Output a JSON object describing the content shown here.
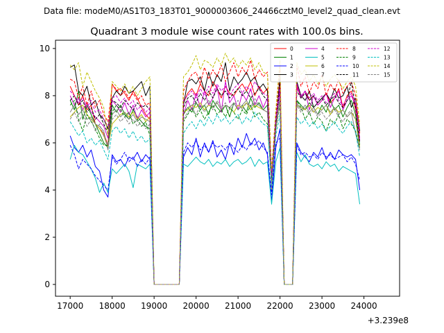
{
  "chart_data": {
    "type": "line",
    "suptitle": "Data file: modeM0/AS1T03_183T01_9000003606_24466cztM0_level2_quad_clean.evt",
    "title": "Quadrant 3 module wise count rates with 100.0s bins.",
    "xlabel": "",
    "ylabel": "",
    "x_offset_label": "+3.239e8",
    "xlim": [
      16650,
      24850
    ],
    "ylim": [
      -0.5,
      10.35
    ],
    "xticks": [
      17000,
      18000,
      19000,
      20000,
      21000,
      22000,
      23000,
      24000
    ],
    "yticks": [
      0,
      2,
      4,
      6,
      8,
      10
    ],
    "x_start": 17000,
    "x_step": 100,
    "grid": false,
    "legend_position": "top-right",
    "series": [
      {
        "name": "0",
        "color": "#ff0000",
        "dash": false,
        "values": [
          8.4,
          8.0,
          7.6,
          8.0,
          7.4,
          7.6,
          6.8,
          6.6,
          6.4,
          5.9,
          8.5,
          8.2,
          8.3,
          8.1,
          7.8,
          8.2,
          7.9,
          7.5,
          7.2,
          7.0,
          0.0,
          0.0,
          0.0,
          0.0,
          0.0,
          0.0,
          0.0,
          7.7,
          8.1,
          8.3,
          8.0,
          8.5,
          8.2,
          8.0,
          8.6,
          8.3,
          7.9,
          8.4,
          8.1,
          8.0,
          8.3,
          8.5,
          8.2,
          8.6,
          8.0,
          8.4,
          8.1,
          8.3,
          4.3,
          7.0,
          8.5,
          0.0,
          0.0,
          0.0,
          8.4,
          7.9,
          8.2,
          7.8,
          8.0,
          7.6,
          7.8,
          8.1,
          7.7,
          7.9,
          8.3,
          7.5,
          8.0,
          8.2,
          7.4,
          6.2
        ]
      },
      {
        "name": "1",
        "color": "#008000",
        "dash": false,
        "values": [
          7.8,
          7.4,
          8.2,
          7.0,
          7.6,
          7.2,
          6.8,
          6.4,
          6.0,
          5.8,
          7.6,
          7.3,
          7.6,
          7.2,
          7.0,
          7.4,
          7.1,
          6.9,
          6.7,
          6.6,
          0.0,
          0.0,
          0.0,
          0.0,
          0.0,
          0.0,
          0.0,
          7.2,
          7.5,
          7.3,
          7.7,
          7.4,
          7.6,
          7.2,
          7.8,
          7.5,
          7.3,
          7.6,
          7.1,
          7.7,
          7.4,
          7.6,
          7.3,
          7.9,
          7.5,
          7.7,
          7.4,
          7.6,
          4.1,
          6.6,
          7.9,
          0.0,
          0.0,
          0.0,
          7.8,
          7.6,
          7.4,
          7.7,
          7.5,
          7.2,
          7.6,
          7.3,
          7.8,
          7.4,
          7.6,
          7.1,
          7.5,
          7.8,
          7.2,
          5.9
        ]
      },
      {
        "name": "2",
        "color": "#0000ff",
        "dash": false,
        "values": [
          6.3,
          5.8,
          5.6,
          5.9,
          5.4,
          5.7,
          5.0,
          4.8,
          4.0,
          3.7,
          5.5,
          5.2,
          5.3,
          5.0,
          5.4,
          5.3,
          5.6,
          5.2,
          5.5,
          5.3,
          0.0,
          0.0,
          0.0,
          0.0,
          0.0,
          0.0,
          0.0,
          5.4,
          5.8,
          5.5,
          6.2,
          5.4,
          6.0,
          5.6,
          6.1,
          5.4,
          5.7,
          5.3,
          6.0,
          5.5,
          6.2,
          5.8,
          6.4,
          5.9,
          6.2,
          5.7,
          6.0,
          5.5,
          3.5,
          5.8,
          6.6,
          0.0,
          0.0,
          0.0,
          6.0,
          5.6,
          5.4,
          5.2,
          5.6,
          5.4,
          5.8,
          5.3,
          5.6,
          5.3,
          5.7,
          5.5,
          5.4,
          5.5,
          5.3,
          4.0
        ]
      },
      {
        "name": "3",
        "color": "#000000",
        "dash": false,
        "values": [
          9.2,
          9.3,
          8.2,
          8.0,
          8.4,
          7.6,
          7.8,
          7.2,
          7.0,
          6.6,
          7.9,
          8.2,
          8.0,
          8.4,
          8.1,
          8.2,
          8.4,
          8.6,
          8.0,
          8.4,
          0.0,
          0.0,
          0.0,
          0.0,
          0.0,
          0.0,
          0.0,
          7.6,
          8.6,
          8.7,
          8.5,
          8.8,
          8.2,
          9.0,
          8.4,
          8.9,
          8.6,
          9.4,
          8.2,
          8.8,
          8.5,
          8.7,
          9.0,
          8.6,
          8.8,
          8.3,
          8.5,
          8.2,
          4.5,
          6.8,
          8.8,
          0.0,
          0.0,
          0.0,
          8.6,
          8.0,
          7.8,
          8.2,
          7.5,
          7.7,
          7.9,
          8.1,
          7.8,
          8.3,
          7.9,
          8.0,
          8.4,
          7.5,
          7.9,
          6.5
        ]
      },
      {
        "name": "4",
        "color": "#cc00cc",
        "dash": false,
        "values": [
          8.0,
          7.6,
          7.9,
          7.4,
          7.7,
          7.3,
          7.1,
          6.9,
          6.7,
          6.2,
          7.8,
          7.6,
          7.3,
          7.7,
          7.2,
          7.6,
          7.0,
          7.4,
          7.1,
          7.3,
          0.0,
          0.0,
          0.0,
          0.0,
          0.0,
          0.0,
          0.0,
          7.2,
          7.8,
          7.4,
          8.1,
          7.5,
          8.2,
          7.6,
          7.9,
          8.4,
          7.3,
          8.6,
          7.7,
          8.0,
          7.4,
          8.1,
          7.8,
          8.3,
          7.6,
          8.0,
          7.5,
          7.9,
          4.2,
          6.9,
          8.2,
          0.0,
          0.0,
          0.0,
          8.5,
          7.9,
          8.2,
          7.4,
          8.0,
          7.6,
          7.8,
          8.1,
          7.5,
          7.9,
          8.2,
          7.4,
          7.8,
          8.0,
          7.6,
          6.1
        ]
      },
      {
        "name": "5",
        "color": "#00bfbf",
        "dash": false,
        "values": [
          5.3,
          5.9,
          5.6,
          5.5,
          5.2,
          4.9,
          4.5,
          3.9,
          4.3,
          3.9,
          4.9,
          4.7,
          4.9,
          5.1,
          4.8,
          4.1,
          5.1,
          5.0,
          4.9,
          5.1,
          0.0,
          0.0,
          0.0,
          0.0,
          0.0,
          0.0,
          0.0,
          5.1,
          5.0,
          5.2,
          5.4,
          5.2,
          5.1,
          5.3,
          5.0,
          5.2,
          5.1,
          5.3,
          5.0,
          5.2,
          5.3,
          5.1,
          5.2,
          5.4,
          5.0,
          5.3,
          5.1,
          5.2,
          3.4,
          5.2,
          5.8,
          0.0,
          0.0,
          0.0,
          5.6,
          5.2,
          5.5,
          5.1,
          5.0,
          5.1,
          4.9,
          5.2,
          5.0,
          5.1,
          4.8,
          5.0,
          4.9,
          4.8,
          4.7,
          3.4
        ]
      },
      {
        "name": "6",
        "color": "#bfbf00",
        "dash": false,
        "values": [
          7.1,
          7.3,
          7.5,
          7.6,
          7.2,
          7.0,
          6.8,
          6.6,
          6.3,
          5.8,
          6.8,
          7.0,
          7.2,
          7.3,
          7.1,
          7.3,
          7.0,
          7.2,
          6.9,
          7.1,
          0.0,
          0.0,
          0.0,
          0.0,
          0.0,
          0.0,
          0.0,
          7.3,
          7.4,
          7.6,
          7.5,
          7.7,
          7.4,
          7.6,
          7.5,
          7.7,
          7.4,
          7.6,
          7.5,
          7.3,
          7.6,
          7.5,
          7.7,
          7.4,
          7.6,
          7.5,
          7.4,
          7.3,
          4.0,
          6.6,
          7.8,
          0.0,
          0.0,
          0.0,
          7.6,
          7.5,
          7.4,
          7.6,
          7.3,
          7.5,
          7.4,
          7.6,
          7.2,
          7.5,
          7.3,
          7.4,
          7.1,
          7.3,
          7.0,
          5.8
        ]
      },
      {
        "name": "7",
        "color": "#808080",
        "dash": false,
        "values": [
          7.3,
          7.6,
          7.2,
          7.4,
          7.0,
          7.1,
          6.8,
          6.7,
          6.5,
          5.7,
          7.2,
          7.4,
          7.1,
          7.3,
          7.0,
          7.2,
          6.9,
          7.1,
          7.0,
          6.9,
          0.0,
          0.0,
          0.0,
          0.0,
          0.0,
          0.0,
          0.0,
          7.3,
          7.5,
          7.6,
          7.7,
          7.5,
          7.6,
          7.8,
          7.5,
          7.7,
          7.4,
          7.6,
          7.5,
          7.7,
          7.4,
          7.6,
          7.8,
          7.5,
          7.7,
          7.6,
          7.4,
          7.3,
          4.1,
          6.7,
          7.9,
          0.0,
          0.0,
          0.0,
          7.7,
          7.4,
          7.6,
          7.3,
          7.5,
          7.2,
          7.4,
          7.6,
          7.3,
          7.5,
          7.2,
          7.4,
          7.1,
          7.3,
          6.4,
          5.7
        ]
      },
      {
        "name": "8",
        "color": "#ff0000",
        "dash": true,
        "values": [
          8.7,
          8.6,
          7.9,
          8.4,
          7.6,
          8.2,
          7.5,
          7.8,
          7.2,
          6.9,
          8.4,
          8.3,
          8.0,
          8.2,
          7.9,
          8.1,
          7.8,
          8.0,
          7.6,
          7.7,
          0.0,
          0.0,
          0.0,
          0.0,
          0.0,
          0.0,
          0.0,
          8.2,
          8.6,
          8.9,
          9.0,
          8.5,
          9.2,
          8.7,
          9.1,
          8.8,
          9.3,
          8.6,
          9.0,
          9.4,
          8.8,
          9.2,
          8.9,
          9.5,
          8.7,
          9.1,
          8.8,
          9.0,
          4.8,
          7.2,
          9.3,
          0.0,
          0.0,
          0.0,
          9.3,
          8.4,
          8.8,
          8.1,
          8.6,
          8.3,
          8.9,
          8.0,
          8.5,
          8.2,
          8.7,
          8.1,
          8.4,
          8.6,
          8.0,
          6.4
        ]
      },
      {
        "name": "9",
        "color": "#008000",
        "dash": true,
        "values": [
          7.6,
          7.8,
          7.0,
          6.5,
          7.2,
          6.9,
          6.6,
          6.2,
          5.9,
          5.9,
          7.3,
          7.6,
          7.4,
          7.1,
          7.3,
          6.8,
          7.0,
          6.7,
          6.9,
          6.3,
          0.0,
          0.0,
          0.0,
          0.0,
          0.0,
          0.0,
          0.0,
          6.9,
          7.2,
          7.5,
          7.1,
          7.4,
          7.0,
          7.3,
          7.6,
          7.2,
          7.4,
          7.1,
          7.5,
          7.3,
          7.0,
          7.4,
          7.2,
          7.6,
          7.1,
          7.3,
          7.0,
          6.8,
          4.4,
          6.6,
          7.6,
          0.0,
          0.0,
          0.0,
          7.8,
          7.5,
          7.0,
          7.3,
          6.8,
          7.1,
          6.9,
          6.5,
          7.0,
          6.8,
          7.2,
          6.6,
          7.0,
          6.8,
          6.5,
          5.8
        ]
      },
      {
        "name": "10",
        "color": "#0000ff",
        "dash": true,
        "values": [
          5.9,
          5.5,
          4.9,
          5.3,
          5.1,
          4.9,
          4.6,
          4.4,
          4.2,
          4.0,
          5.4,
          5.1,
          5.3,
          5.6,
          5.2,
          5.4,
          5.0,
          5.3,
          5.1,
          5.4,
          0.0,
          0.0,
          0.0,
          0.0,
          0.0,
          0.0,
          0.0,
          5.6,
          6.0,
          5.8,
          6.1,
          5.7,
          5.9,
          5.6,
          6.0,
          5.8,
          5.9,
          5.7,
          6.0,
          5.8,
          5.6,
          5.9,
          5.7,
          6.0,
          5.9,
          6.1,
          5.8,
          5.6,
          3.8,
          6.0,
          6.2,
          0.0,
          0.0,
          0.0,
          5.9,
          5.5,
          5.6,
          5.4,
          5.5,
          5.3,
          5.6,
          5.4,
          5.5,
          5.3,
          5.4,
          5.5,
          5.2,
          5.4,
          5.1,
          4.4
        ]
      },
      {
        "name": "11",
        "color": "#000000",
        "dash": true,
        "values": [
          7.8,
          8.0,
          7.6,
          7.8,
          7.3,
          7.5,
          7.0,
          7.2,
          6.8,
          6.4,
          7.8,
          7.7,
          7.5,
          7.8,
          7.6,
          7.4,
          7.7,
          7.5,
          7.6,
          7.4,
          0.0,
          0.0,
          0.0,
          0.0,
          0.0,
          0.0,
          0.0,
          7.5,
          7.9,
          8.0,
          7.7,
          8.1,
          7.8,
          8.2,
          7.9,
          8.3,
          8.0,
          8.2,
          7.9,
          8.1,
          8.3,
          8.0,
          8.2,
          7.9,
          8.1,
          8.3,
          8.0,
          7.8,
          4.4,
          6.9,
          8.3,
          0.0,
          0.0,
          0.0,
          8.2,
          7.9,
          8.1,
          7.8,
          8.0,
          7.7,
          7.9,
          7.6,
          7.8,
          8.0,
          7.7,
          7.5,
          7.8,
          8.6,
          7.5,
          6.0
        ]
      },
      {
        "name": "12",
        "color": "#cc00cc",
        "dash": true,
        "values": [
          8.2,
          8.0,
          7.7,
          7.9,
          7.5,
          7.8,
          7.3,
          7.4,
          7.0,
          6.7,
          7.9,
          8.0,
          7.7,
          7.9,
          7.6,
          7.8,
          7.4,
          7.6,
          7.3,
          7.5,
          0.0,
          0.0,
          0.0,
          0.0,
          0.0,
          0.0,
          0.0,
          7.8,
          8.0,
          8.2,
          7.9,
          8.3,
          8.0,
          8.4,
          8.1,
          8.5,
          8.2,
          8.4,
          8.0,
          8.3,
          8.5,
          8.1,
          8.4,
          8.2,
          8.6,
          8.3,
          8.1,
          8.0,
          4.6,
          7.0,
          8.4,
          0.0,
          0.0,
          0.0,
          8.3,
          8.0,
          8.2,
          7.9,
          8.1,
          7.8,
          8.0,
          7.7,
          7.9,
          8.1,
          7.8,
          7.6,
          7.9,
          8.1,
          7.7,
          6.2
        ]
      },
      {
        "name": "13",
        "color": "#00bfbf",
        "dash": true,
        "values": [
          6.9,
          6.6,
          6.3,
          6.5,
          6.0,
          6.2,
          5.9,
          6.1,
          5.7,
          5.3,
          6.5,
          6.7,
          6.4,
          6.6,
          6.2,
          6.5,
          6.1,
          6.3,
          6.0,
          6.2,
          0.0,
          0.0,
          0.0,
          0.0,
          0.0,
          0.0,
          0.0,
          6.4,
          6.7,
          6.9,
          6.6,
          7.0,
          6.7,
          7.1,
          6.8,
          7.2,
          6.9,
          7.1,
          6.8,
          7.0,
          7.2,
          6.8,
          7.1,
          6.9,
          7.3,
          7.0,
          6.8,
          6.7,
          4.2,
          6.3,
          7.2,
          0.0,
          0.0,
          0.0,
          7.1,
          6.8,
          7.0,
          6.7,
          6.9,
          6.6,
          6.8,
          6.5,
          6.7,
          6.9,
          6.6,
          6.4,
          6.7,
          6.9,
          6.5,
          5.4
        ]
      },
      {
        "name": "14",
        "color": "#bfbf00",
        "dash": true,
        "values": [
          9.3,
          9.1,
          9.4,
          8.4,
          9.0,
          8.6,
          8.2,
          7.9,
          7.5,
          6.3,
          8.6,
          8.4,
          8.2,
          8.5,
          8.1,
          8.4,
          8.0,
          8.3,
          8.6,
          8.8,
          0.0,
          0.0,
          0.0,
          0.0,
          0.0,
          0.0,
          0.0,
          8.8,
          9.0,
          9.3,
          9.7,
          9.1,
          9.5,
          9.4,
          9.2,
          9.6,
          9.3,
          9.8,
          9.4,
          9.6,
          9.2,
          9.5,
          9.3,
          9.6,
          9.1,
          9.4,
          9.0,
          8.9,
          4.9,
          7.4,
          9.5,
          0.0,
          0.0,
          0.0,
          9.4,
          8.9,
          9.1,
          8.6,
          8.9,
          8.5,
          8.8,
          8.4,
          8.7,
          8.9,
          8.6,
          8.3,
          8.6,
          8.8,
          8.4,
          6.8
        ]
      },
      {
        "name": "15",
        "color": "#808080",
        "dash": true,
        "values": [
          7.0,
          7.3,
          6.9,
          7.2,
          6.7,
          7.0,
          6.5,
          6.8,
          6.3,
          5.9,
          7.0,
          7.2,
          6.9,
          7.1,
          6.8,
          7.0,
          6.7,
          6.9,
          6.6,
          6.8,
          0.0,
          0.0,
          0.0,
          0.0,
          0.0,
          0.0,
          0.0,
          7.0,
          7.3,
          7.5,
          7.2,
          7.6,
          7.3,
          7.7,
          7.4,
          7.8,
          7.5,
          7.7,
          7.4,
          7.6,
          7.8,
          7.4,
          7.7,
          7.5,
          7.9,
          7.6,
          7.4,
          7.3,
          4.3,
          6.5,
          7.7,
          0.0,
          0.0,
          0.0,
          7.6,
          7.3,
          7.5,
          7.2,
          7.4,
          7.1,
          7.3,
          7.0,
          7.2,
          7.4,
          7.1,
          6.9,
          7.2,
          7.4,
          7.0,
          5.7
        ]
      }
    ]
  }
}
